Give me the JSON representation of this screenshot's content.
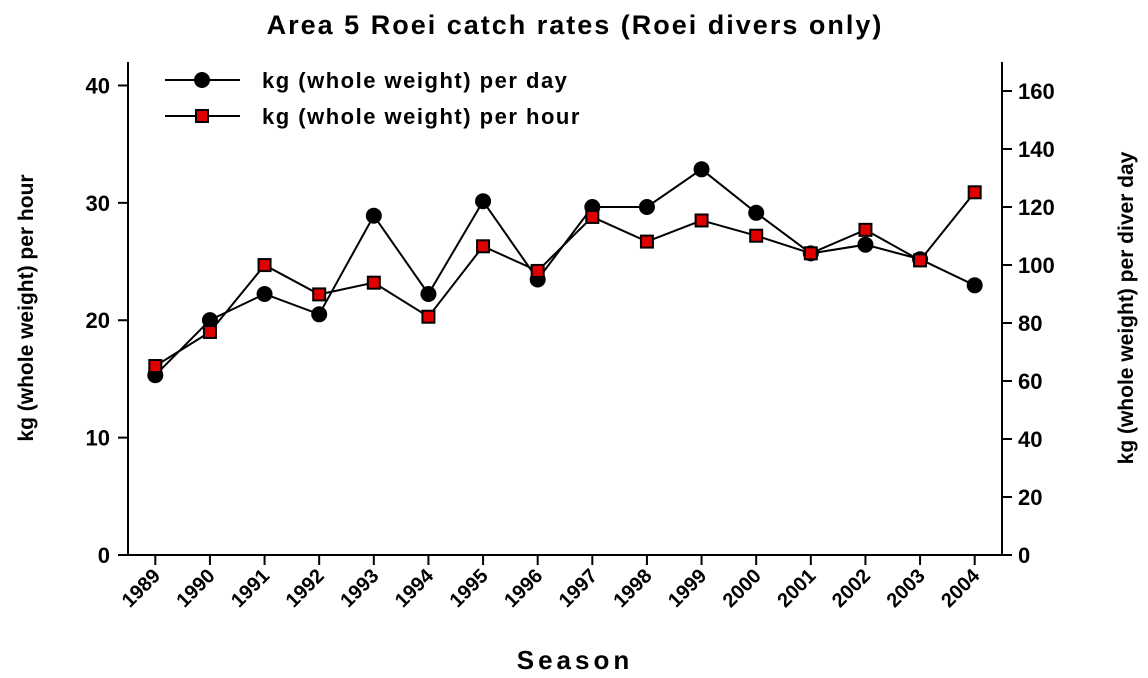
{
  "chart_data": {
    "type": "line",
    "title": "Area 5 Roei catch rates (Roei divers only)",
    "x_label": "Season",
    "y_label": "kg (whole weight) per hour",
    "y2_label": "kg (whole weight) per diver day",
    "categories": [
      "1989",
      "1990",
      "1991",
      "1992",
      "1993",
      "1994",
      "1995",
      "1996",
      "1997",
      "1998",
      "1999",
      "2000",
      "2001",
      "2002",
      "2003",
      "2004"
    ],
    "series": [
      {
        "name": "kg (whole weight) per day",
        "color": "#000000",
        "marker": "circle",
        "axis": "y2",
        "values": [
          62,
          81,
          90,
          83,
          117,
          90,
          122,
          95,
          120,
          120,
          133,
          118,
          104,
          107,
          102,
          93
        ]
      },
      {
        "name": "kg (whole weight) per hour",
        "color": "#e00000",
        "marker": "square",
        "axis": "y",
        "values": [
          16.1,
          19.0,
          24.7,
          22.2,
          23.2,
          20.3,
          26.3,
          24.2,
          28.8,
          26.7,
          28.5,
          27.2,
          25.7,
          27.7,
          25.1,
          30.9
        ]
      }
    ],
    "ylim": [
      0,
      42
    ],
    "yticks": [
      0,
      10,
      20,
      30,
      40
    ],
    "y2lim": [
      0,
      170
    ],
    "y2ticks": [
      0,
      20,
      40,
      60,
      80,
      100,
      120,
      140,
      160
    ],
    "legend": "top-left"
  }
}
